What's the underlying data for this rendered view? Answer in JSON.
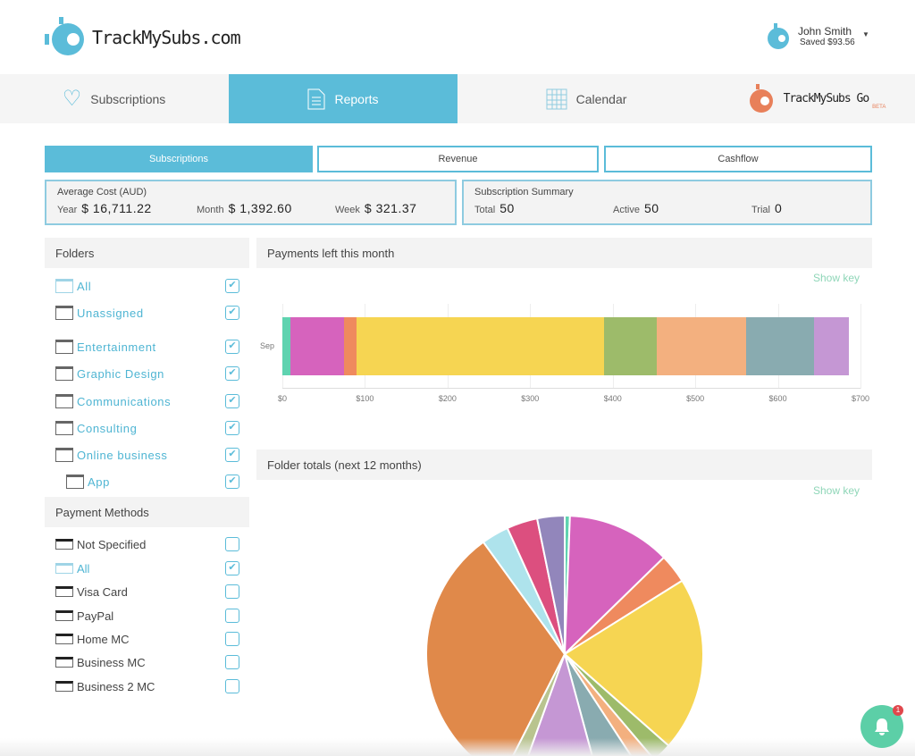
{
  "header": {
    "brand": "TrackMySubs.com",
    "user_name": "John Smith",
    "user_saved": "Saved $93.56"
  },
  "nav": {
    "tabs": [
      {
        "label": "Subscriptions",
        "icon": "heart-icon"
      },
      {
        "label": "Reports",
        "icon": "document-icon",
        "active": true
      },
      {
        "label": "Calendar",
        "icon": "calendar-icon"
      }
    ],
    "go_logo": "TrackMySubs Go",
    "go_badge": "BETA"
  },
  "subtabs": [
    {
      "label": "Subscriptions",
      "active": true
    },
    {
      "label": "Revenue"
    },
    {
      "label": "Cashflow"
    }
  ],
  "avg_cost": {
    "title": "Average Cost (AUD)",
    "year_label": "Year",
    "year": "$ 16,711.22",
    "month_label": "Month",
    "month": "$ 1,392.60",
    "week_label": "Week",
    "week": "$ 321.37"
  },
  "summary": {
    "title": "Subscription Summary",
    "total_label": "Total",
    "total": "50",
    "active_label": "Active",
    "active": "50",
    "trial_label": "Trial",
    "trial": "0"
  },
  "folders": {
    "title": "Folders",
    "items": [
      {
        "label": "All",
        "checked": true
      },
      {
        "label": "Unassigned",
        "checked": true
      },
      {
        "label": "Entertainment",
        "checked": true
      },
      {
        "label": "Graphic Design",
        "checked": true
      },
      {
        "label": "Communications",
        "checked": true
      },
      {
        "label": "Consulting",
        "checked": true
      },
      {
        "label": "Online business",
        "checked": true
      },
      {
        "label": "App",
        "checked": true
      }
    ]
  },
  "payment_methods": {
    "title": "Payment Methods",
    "items": [
      {
        "label": "Not Specified",
        "checked": false
      },
      {
        "label": "All",
        "checked": true
      },
      {
        "label": "Visa Card",
        "checked": false
      },
      {
        "label": "PayPal",
        "checked": false
      },
      {
        "label": "Home MC",
        "checked": false
      },
      {
        "label": "Business MC",
        "checked": false
      },
      {
        "label": "Business 2 MC",
        "checked": false
      }
    ]
  },
  "notifications": {
    "count": "1"
  },
  "chart_data": [
    {
      "type": "bar",
      "orientation": "horizontal",
      "stacked": true,
      "title": "Payments left this month",
      "legend_toggle": "Show key",
      "categories": [
        "Sep"
      ],
      "xlim": [
        0,
        700
      ],
      "xticks": [
        "$0",
        "$100",
        "$200",
        "$300",
        "$400",
        "$500",
        "$600",
        "$700"
      ],
      "grid": true,
      "series": [
        {
          "values": [
            10
          ],
          "color": "#5fd3b0"
        },
        {
          "values": [
            65
          ],
          "color": "#d663bd"
        },
        {
          "values": [
            15
          ],
          "color": "#ef8a5e"
        },
        {
          "values": [
            300
          ],
          "color": "#f6d552"
        },
        {
          "values": [
            63
          ],
          "color": "#9dbb6a"
        },
        {
          "values": [
            108
          ],
          "color": "#f3b07f"
        },
        {
          "values": [
            83
          ],
          "color": "#89abb0"
        },
        {
          "values": [
            42
          ],
          "color": "#c597d4"
        }
      ]
    },
    {
      "type": "pie",
      "title": "Folder totals (next 12 months)",
      "legend_toggle": "Show key",
      "unit": "percent",
      "slices": [
        {
          "value": 0.6,
          "color": "#5fd3b0"
        },
        {
          "value": 12.1,
          "color": "#d663bd"
        },
        {
          "value": 3.4,
          "color": "#ef8a5e"
        },
        {
          "value": 20.4,
          "color": "#f6d552"
        },
        {
          "value": 2.3,
          "color": "#9dbb6a"
        },
        {
          "value": 2.0,
          "color": "#f3b07f"
        },
        {
          "value": 5.0,
          "color": "#89abb0"
        },
        {
          "value": 9.7,
          "color": "#c597d4"
        },
        {
          "value": 2.0,
          "color": "#b9c48f"
        },
        {
          "value": 32.5,
          "color": "#e0894a"
        },
        {
          "value": 3.2,
          "color": "#aee3ec"
        },
        {
          "value": 3.6,
          "color": "#dc4f7f"
        },
        {
          "value": 3.2,
          "color": "#9286bb"
        }
      ]
    }
  ]
}
